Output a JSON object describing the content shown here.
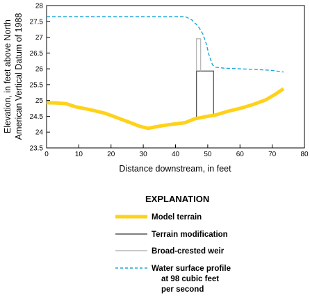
{
  "chart_data": {
    "type": "line",
    "xlabel": "Distance downstream, in feet",
    "ylabel_line1": "Elevation, in feet above North",
    "ylabel_line2": "American Vertical Datum of 1988",
    "xlim": [
      0,
      80
    ],
    "ylim": [
      23.5,
      28
    ],
    "xticks": [
      0,
      10,
      20,
      30,
      40,
      50,
      60,
      70,
      80
    ],
    "yticks": [
      23.5,
      24,
      24.5,
      25,
      25.5,
      26,
      26.5,
      27,
      27.5,
      28
    ],
    "grid": false,
    "legend_title": "EXPLANATION",
    "series": [
      {
        "key": "terrain",
        "name": "Model terrain",
        "color": "#ffd21a",
        "style": "solid-thick",
        "points": [
          [
            0,
            24.93
          ],
          [
            3,
            24.92
          ],
          [
            6,
            24.9
          ],
          [
            9,
            24.8
          ],
          [
            13,
            24.72
          ],
          [
            18,
            24.6
          ],
          [
            22,
            24.45
          ],
          [
            26,
            24.3
          ],
          [
            29,
            24.18
          ],
          [
            31.5,
            24.12
          ],
          [
            34,
            24.17
          ],
          [
            37,
            24.22
          ],
          [
            40,
            24.26
          ],
          [
            43,
            24.3
          ],
          [
            46,
            24.42
          ],
          [
            50,
            24.5
          ],
          [
            52,
            24.53
          ],
          [
            56,
            24.65
          ],
          [
            60,
            24.75
          ],
          [
            64,
            24.87
          ],
          [
            68,
            25.02
          ],
          [
            71,
            25.2
          ],
          [
            73.5,
            25.37
          ]
        ]
      },
      {
        "key": "water",
        "name": "Water surface profile",
        "name_line2": "at 98 cubic feet",
        "name_line3": "per second",
        "color": "#1ba6d9",
        "style": "dashed",
        "points": [
          [
            0,
            27.65
          ],
          [
            20,
            27.65
          ],
          [
            43,
            27.65
          ],
          [
            45,
            27.55
          ],
          [
            47,
            27.35
          ],
          [
            48.5,
            27.1
          ],
          [
            49.5,
            26.8
          ],
          [
            50.5,
            26.4
          ],
          [
            51.5,
            26.12
          ],
          [
            52.5,
            26.05
          ],
          [
            55,
            26.02
          ],
          [
            60,
            26.0
          ],
          [
            65,
            25.98
          ],
          [
            70,
            25.95
          ],
          [
            73.5,
            25.9
          ]
        ]
      }
    ],
    "terrain_modification": {
      "name": "Terrain modification",
      "color": "#555555",
      "x0": 46.5,
      "x1": 51.8,
      "y_top": 25.93,
      "y_base_left": 24.45,
      "y_base_right": 24.53
    },
    "broad_crested_weir": {
      "name": "Broad-crested weir",
      "color": "#b8b8b8",
      "x0": 46.5,
      "x1": 47.8,
      "y_top": 26.95,
      "y_bottom": 25.93
    }
  }
}
